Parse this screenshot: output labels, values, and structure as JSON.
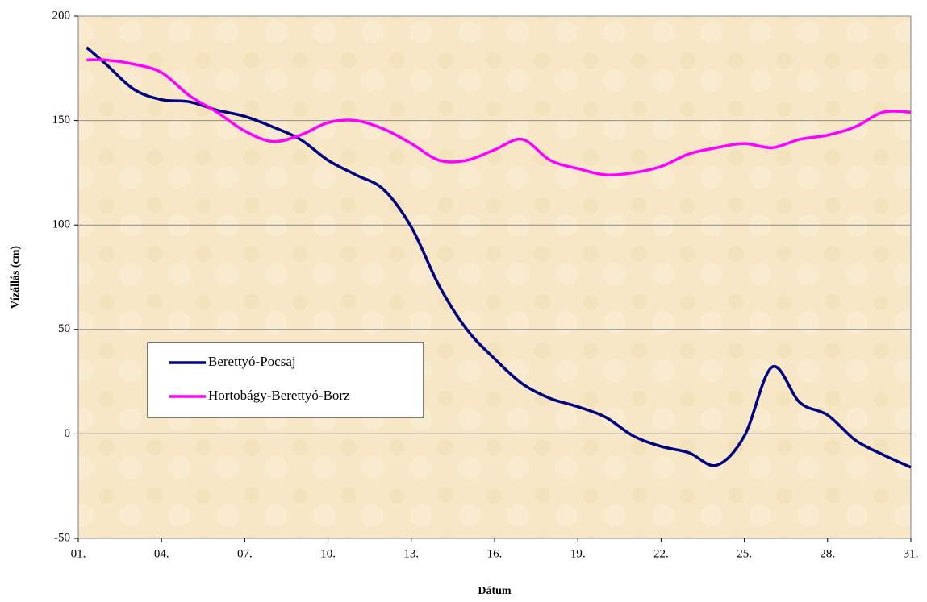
{
  "chart_data": {
    "type": "line",
    "xlabel": "Dátum",
    "ylabel": "Vízállás (cm)",
    "x": [
      1.3,
      2,
      3,
      4,
      5,
      6,
      7,
      8,
      9,
      10,
      11,
      12,
      13,
      14,
      15,
      16,
      17,
      18,
      19,
      20,
      21,
      22,
      23,
      24,
      25,
      26,
      27,
      28,
      29,
      30,
      31
    ],
    "series": [
      {
        "name": "Berettyó-Pocsaj",
        "color": "#000080",
        "values": [
          185,
          177,
          165,
          160,
          159,
          155,
          152,
          147,
          141,
          131,
          124,
          117,
          99,
          71,
          50,
          36,
          24,
          17,
          13,
          8,
          -1,
          -6,
          -9,
          -15,
          -1,
          32,
          15,
          9,
          -3,
          -10,
          -16
        ]
      },
      {
        "name": "Hortobágy-Berettyó-Borz",
        "color": "#ff00ff",
        "values": [
          179,
          179,
          177,
          173,
          162,
          154,
          145,
          140,
          143,
          149,
          150,
          146,
          139,
          131,
          131,
          136,
          141,
          131,
          127,
          124,
          125,
          128,
          134,
          137,
          139,
          137,
          141,
          143,
          147,
          154,
          154
        ]
      }
    ],
    "xlim": [
      1,
      31
    ],
    "xticks": [
      {
        "value": 1,
        "label": "01."
      },
      {
        "value": 4,
        "label": "04."
      },
      {
        "value": 7,
        "label": "07."
      },
      {
        "value": 10,
        "label": "10."
      },
      {
        "value": 13,
        "label": "13."
      },
      {
        "value": 16,
        "label": "16."
      },
      {
        "value": 19,
        "label": "19."
      },
      {
        "value": 22,
        "label": "22."
      },
      {
        "value": 25,
        "label": "25."
      },
      {
        "value": 28,
        "label": "28."
      },
      {
        "value": 31,
        "label": "31."
      }
    ],
    "ylim": [
      -50,
      200
    ],
    "yticks": [
      -50,
      0,
      50,
      100,
      150,
      200
    ],
    "grid": true
  }
}
